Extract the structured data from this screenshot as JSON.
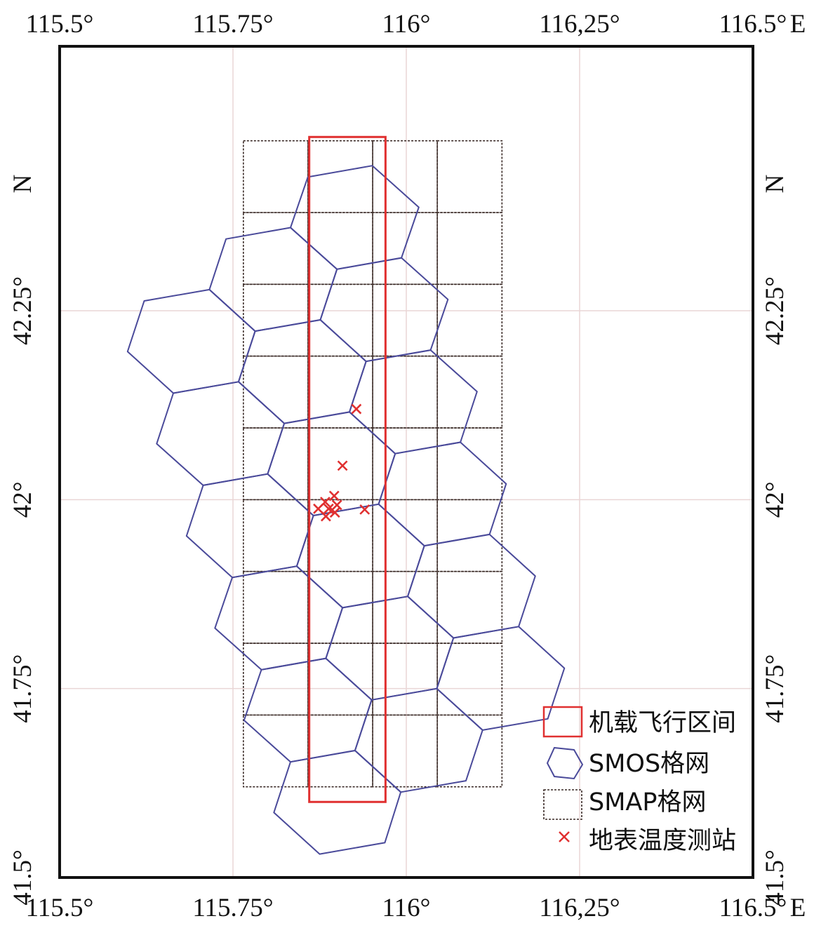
{
  "map": {
    "extent": {
      "lon_min": 115.5,
      "lon_max": 116.5,
      "lat_min": 41.5,
      "lat_max": 42.6
    },
    "x_ticks": [
      {
        "value": 115.5,
        "label": "115.5°"
      },
      {
        "value": 115.75,
        "label": "115.75°"
      },
      {
        "value": 116.0,
        "label": "116°"
      },
      {
        "value": 116.25,
        "label": "116,25°"
      },
      {
        "value": 116.5,
        "label": "116.5°"
      }
    ],
    "y_ticks": [
      {
        "value": 41.5,
        "label": "41.5°"
      },
      {
        "value": 41.75,
        "label": "41.75°"
      },
      {
        "value": 42.0,
        "label": "42°"
      },
      {
        "value": 42.25,
        "label": "42.25°"
      }
    ],
    "x_hemisphere": "E",
    "y_hemisphere": "N",
    "colors": {
      "flight_box": "#e03030",
      "smos_grid": "#4a4a9a",
      "smap_grid": "#3a2a26",
      "stations": "#e03030",
      "graticule": "#ead6d6",
      "frame": "#111111"
    },
    "flight_area": {
      "lon_min": 115.86,
      "lon_max": 115.97,
      "lat_min": 41.6,
      "lat_max": 42.48
    },
    "smap_grid": {
      "lon_edges": [
        115.765,
        115.8582,
        115.9515,
        116.0447,
        116.138
      ],
      "lat_edges": [
        41.62,
        41.715,
        41.81,
        41.905,
        42.0,
        42.095,
        42.19,
        42.285,
        42.38,
        42.475
      ]
    },
    "smos_grid": {
      "hexagons": [
        [
          [
            115.9,
            42.305
          ],
          [
            115.993,
            42.32
          ],
          [
            116.018,
            42.387
          ],
          [
            115.951,
            42.442
          ],
          [
            115.858,
            42.427
          ],
          [
            115.833,
            42.36
          ]
        ],
        [
          [
            115.833,
            42.36
          ],
          [
            115.9,
            42.305
          ],
          [
            115.876,
            42.238
          ],
          [
            115.782,
            42.223
          ],
          [
            115.716,
            42.278
          ],
          [
            115.74,
            42.345
          ]
        ],
        [
          [
            115.993,
            42.32
          ],
          [
            115.9,
            42.305
          ],
          [
            115.876,
            42.238
          ],
          [
            115.942,
            42.183
          ],
          [
            116.035,
            42.198
          ],
          [
            116.06,
            42.265
          ]
        ],
        [
          [
            115.942,
            42.183
          ],
          [
            115.876,
            42.238
          ],
          [
            115.782,
            42.223
          ],
          [
            115.758,
            42.156
          ],
          [
            115.824,
            42.101
          ],
          [
            115.918,
            42.116
          ]
        ],
        [
          [
            115.758,
            42.156
          ],
          [
            115.664,
            42.141
          ],
          [
            115.598,
            42.196
          ],
          [
            115.622,
            42.263
          ],
          [
            115.716,
            42.278
          ],
          [
            115.782,
            42.223
          ]
        ],
        [
          [
            116.035,
            42.198
          ],
          [
            115.942,
            42.183
          ],
          [
            115.918,
            42.116
          ],
          [
            115.984,
            42.061
          ],
          [
            116.078,
            42.076
          ],
          [
            116.102,
            42.143
          ]
        ],
        [
          [
            115.918,
            42.116
          ],
          [
            115.984,
            42.061
          ],
          [
            115.96,
            41.994
          ],
          [
            115.866,
            41.979
          ],
          [
            115.8,
            42.034
          ],
          [
            115.824,
            42.101
          ]
        ],
        [
          [
            115.824,
            42.101
          ],
          [
            115.8,
            42.034
          ],
          [
            115.707,
            42.019
          ],
          [
            115.64,
            42.074
          ],
          [
            115.664,
            42.141
          ],
          [
            115.758,
            42.156
          ]
        ],
        [
          [
            116.078,
            42.076
          ],
          [
            115.984,
            42.061
          ],
          [
            115.96,
            41.994
          ],
          [
            116.026,
            41.939
          ],
          [
            116.12,
            41.954
          ],
          [
            116.144,
            42.021
          ]
        ],
        [
          [
            115.96,
            41.994
          ],
          [
            116.026,
            41.939
          ],
          [
            116.002,
            41.872
          ],
          [
            115.908,
            41.857
          ],
          [
            115.842,
            41.912
          ],
          [
            115.866,
            41.979
          ]
        ],
        [
          [
            115.866,
            41.979
          ],
          [
            115.8,
            42.034
          ],
          [
            115.707,
            42.019
          ],
          [
            115.683,
            41.952
          ],
          [
            115.749,
            41.897
          ],
          [
            115.842,
            41.912
          ]
        ],
        [
          [
            116.12,
            41.954
          ],
          [
            116.026,
            41.939
          ],
          [
            116.002,
            41.872
          ],
          [
            116.068,
            41.817
          ],
          [
            116.162,
            41.832
          ],
          [
            116.186,
            41.899
          ]
        ],
        [
          [
            116.002,
            41.872
          ],
          [
            115.908,
            41.857
          ],
          [
            115.884,
            41.79
          ],
          [
            115.95,
            41.735
          ],
          [
            116.044,
            41.75
          ],
          [
            116.068,
            41.817
          ]
        ],
        [
          [
            115.908,
            41.857
          ],
          [
            115.842,
            41.912
          ],
          [
            115.749,
            41.897
          ],
          [
            115.724,
            41.83
          ],
          [
            115.791,
            41.775
          ],
          [
            115.884,
            41.79
          ]
        ],
        [
          [
            115.884,
            41.79
          ],
          [
            115.95,
            41.735
          ],
          [
            115.926,
            41.668
          ],
          [
            115.833,
            41.653
          ],
          [
            115.766,
            41.708
          ],
          [
            115.791,
            41.775
          ]
        ],
        [
          [
            116.044,
            41.75
          ],
          [
            116.068,
            41.817
          ],
          [
            116.162,
            41.832
          ],
          [
            116.228,
            41.777
          ],
          [
            116.204,
            41.71
          ],
          [
            116.11,
            41.695
          ]
        ],
        [
          [
            115.926,
            41.668
          ],
          [
            115.95,
            41.735
          ],
          [
            116.044,
            41.75
          ],
          [
            116.11,
            41.695
          ],
          [
            116.086,
            41.628
          ],
          [
            115.992,
            41.613
          ]
        ],
        [
          [
            115.926,
            41.668
          ],
          [
            115.833,
            41.653
          ],
          [
            115.809,
            41.586
          ],
          [
            115.875,
            41.531
          ],
          [
            115.969,
            41.546
          ],
          [
            115.992,
            41.613
          ]
        ]
      ]
    },
    "stations": [
      {
        "lon": 115.928,
        "lat": 42.12
      },
      {
        "lon": 115.908,
        "lat": 42.045
      },
      {
        "lon": 115.896,
        "lat": 42.005
      },
      {
        "lon": 115.883,
        "lat": 41.997
      },
      {
        "lon": 115.9,
        "lat": 41.993
      },
      {
        "lon": 115.873,
        "lat": 41.988
      },
      {
        "lon": 115.888,
        "lat": 41.988
      },
      {
        "lon": 115.884,
        "lat": 41.978
      },
      {
        "lon": 115.897,
        "lat": 41.983
      },
      {
        "lon": 115.94,
        "lat": 41.987
      }
    ]
  },
  "legend": {
    "flight_area_label": "机载飞行区间",
    "smos_label": "SMOS格网",
    "smap_label": "SMAP格网",
    "stations_label": "地表温度测站"
  }
}
